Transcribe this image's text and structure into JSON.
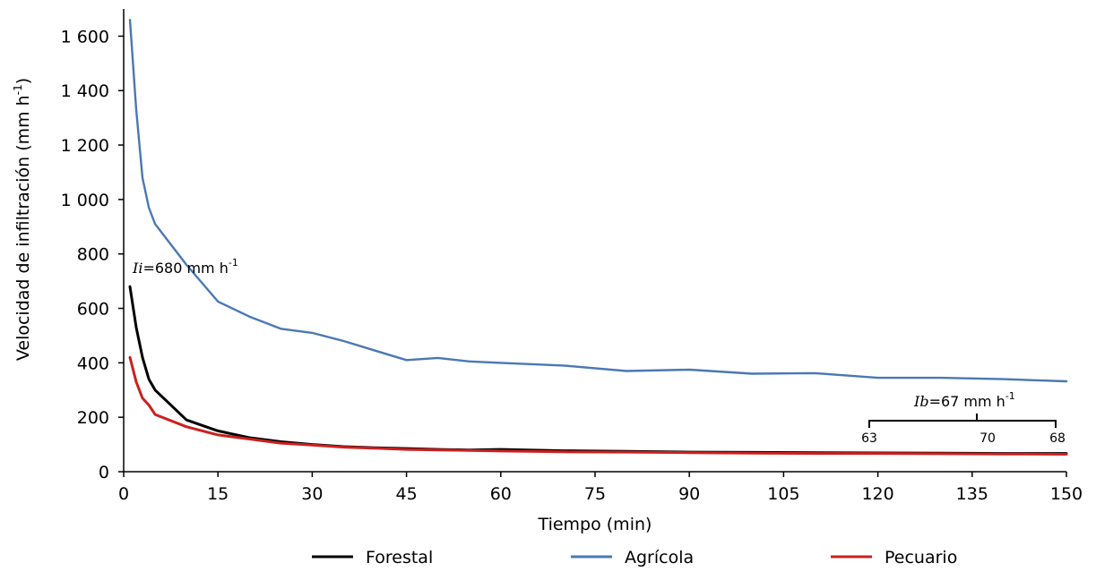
{
  "chart_data": {
    "type": "line",
    "title": "",
    "xlabel": "Tiempo (min)",
    "ylabel": "Velocidad de infiltración (mm h",
    "ylabel_sup": "-1",
    "ylabel_close": ")",
    "xlim": [
      0,
      150
    ],
    "ylim": [
      0,
      1700
    ],
    "xticks": [
      0,
      15,
      30,
      45,
      60,
      75,
      90,
      105,
      120,
      135,
      150
    ],
    "xtick_labels": [
      "0",
      "15",
      "30",
      "45",
      "60",
      "75",
      "90",
      "105",
      "120",
      "135",
      "150"
    ],
    "yticks": [
      0,
      200,
      400,
      600,
      800,
      1000,
      1200,
      1400,
      1600
    ],
    "ytick_labels": [
      "0",
      "200",
      "400",
      "600",
      "800",
      "1 000",
      "1 200",
      "1 400",
      "1 600"
    ],
    "grid": false,
    "legend_position": "bottom",
    "series": [
      {
        "name": "Forestal",
        "color": "#000000",
        "x": [
          1,
          2,
          3,
          4,
          5,
          10,
          15,
          20,
          25,
          30,
          35,
          40,
          45,
          50,
          55,
          60,
          70,
          80,
          90,
          100,
          110,
          120,
          130,
          140,
          150
        ],
        "values": [
          680,
          530,
          420,
          340,
          300,
          190,
          150,
          125,
          110,
          100,
          92,
          88,
          85,
          82,
          80,
          82,
          77,
          75,
          72,
          71,
          70,
          69,
          68,
          67,
          67
        ]
      },
      {
        "name": "Agrícola",
        "color": "#4a78b5",
        "x": [
          1,
          2,
          3,
          4,
          5,
          10,
          15,
          20,
          25,
          30,
          35,
          40,
          45,
          50,
          55,
          60,
          70,
          80,
          90,
          100,
          110,
          120,
          130,
          140,
          150
        ],
        "values": [
          1660,
          1330,
          1080,
          970,
          910,
          760,
          625,
          570,
          525,
          510,
          480,
          445,
          410,
          418,
          405,
          400,
          390,
          370,
          375,
          360,
          362,
          345,
          345,
          340,
          332
        ]
      },
      {
        "name": "Pecuario",
        "color": "#cc1f1f",
        "x": [
          1,
          2,
          3,
          4,
          5,
          10,
          15,
          20,
          25,
          30,
          35,
          40,
          45,
          50,
          55,
          60,
          70,
          80,
          90,
          100,
          110,
          120,
          130,
          140,
          150
        ],
        "values": [
          420,
          330,
          270,
          245,
          210,
          165,
          135,
          120,
          105,
          98,
          90,
          86,
          82,
          80,
          78,
          76,
          73,
          72,
          70,
          68,
          67,
          67,
          66,
          65,
          64
        ]
      }
    ],
    "annotations": {
      "ii_italic": "Ii",
      "ii_rest": "=680 mm h",
      "ii_sup": "-1",
      "ib_italic": "Ib",
      "ib_rest": "=67 mm h",
      "ib_sup": "-1",
      "ib_values": [
        "63",
        "70",
        "68"
      ]
    }
  }
}
